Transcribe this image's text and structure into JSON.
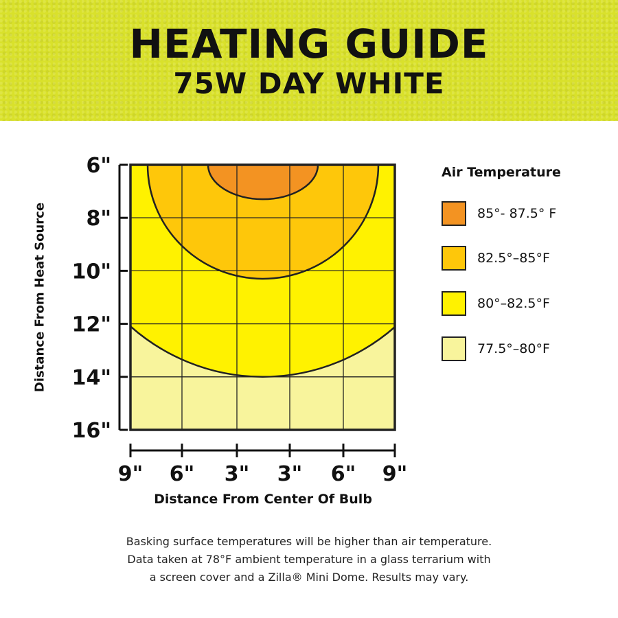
{
  "header": {
    "title": "HEATING GUIDE",
    "subtitle": "75W DAY WHITE"
  },
  "chart_data": {
    "type": "heatmap",
    "title": "HEATING GUIDE",
    "subtitle": "75W DAY WHITE",
    "ylabel": "Distance From Heat Source",
    "xlabel": "Distance From Center Of Bulb",
    "y_ticks": [
      "6\"",
      "8\"",
      "10\"",
      "12\"",
      "14\"",
      "16\""
    ],
    "x_ticks": [
      "9\"",
      "6\"",
      "3\"",
      "3\"",
      "6\"",
      "9\""
    ],
    "grid": true,
    "legend_title": "Air Temperature",
    "legend_placement": "right",
    "zones": [
      {
        "label": "85°- 87.5° F",
        "color": "#f39322",
        "max_depth_in": 7.3
      },
      {
        "label": "82.5°–85°F",
        "color": "#fec70a",
        "max_depth_in": 10.3
      },
      {
        "label": "80°–82.5°F",
        "color": "#fff200",
        "max_depth_in": 14
      },
      {
        "label": "77.5°–80°F",
        "color": "#f8f49c",
        "max_depth_in": 16
      }
    ]
  },
  "note": [
    "Basking surface temperatures will be higher than air temperature.",
    "Data taken at 78°F ambient temperature in a glass terrarium with",
    "a screen cover and a Zilla® Mini Dome. Results may vary."
  ]
}
